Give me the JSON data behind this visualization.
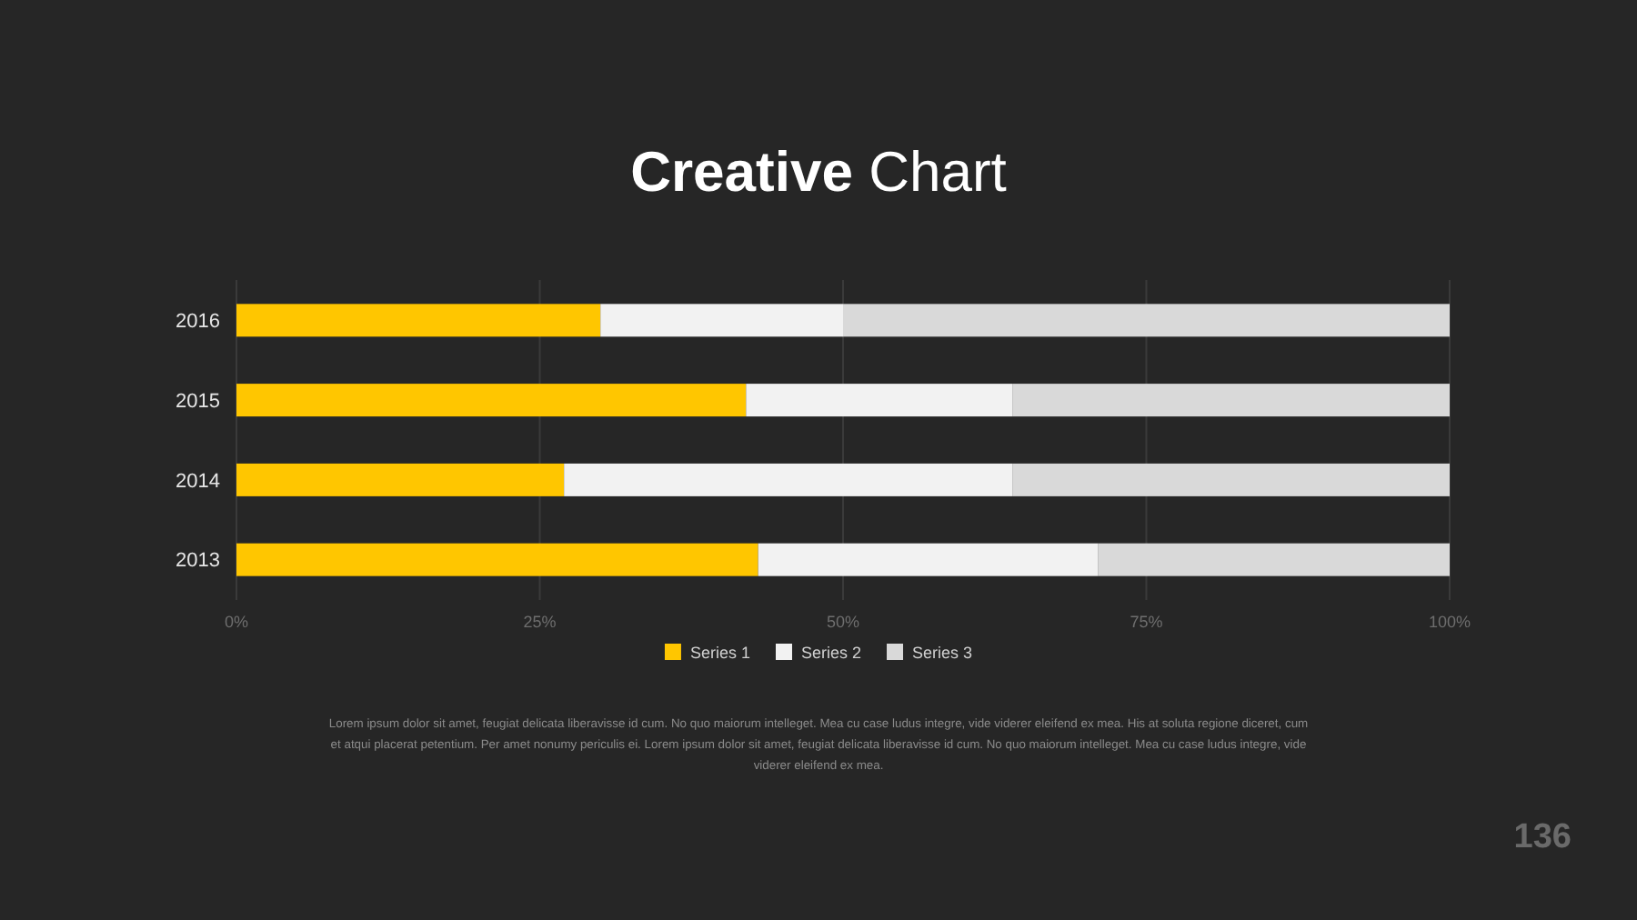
{
  "chart_data": {
    "type": "bar",
    "orientation": "horizontal",
    "stacked": true,
    "title": "Creative Chart",
    "categories": [
      "2016",
      "2015",
      "2014",
      "2013"
    ],
    "series": [
      {
        "name": "Series 1",
        "color": "#ffc600",
        "values": [
          30,
          42,
          27,
          43
        ]
      },
      {
        "name": "Series 2",
        "color": "#f2f2f2",
        "values": [
          20,
          22,
          37,
          28
        ]
      },
      {
        "name": "Series 3",
        "color": "#d9d9d9",
        "values": [
          50,
          36,
          36,
          29
        ]
      }
    ],
    "xlim": [
      0,
      100
    ],
    "xticks": [
      {
        "value": 0,
        "label": "0%"
      },
      {
        "value": 25,
        "label": "25%"
      },
      {
        "value": 50,
        "label": "50%"
      },
      {
        "value": 75,
        "label": "75%"
      },
      {
        "value": 100,
        "label": "100%"
      }
    ],
    "grid": "x",
    "legend": "bottom",
    "annotations": [
      "Lorem ipsum dolor sit amet, feugiat delicata liberavisse id cum. No quo maiorum intelleget. Mea cu case ludus integre, vide viderer eleifend ex mea. His at soluta regione diceret, cum et atqui placerat petentium. Per amet nonumy periculis ei. Lorem ipsum dolor sit amet, feugiat delicata liberavisse id cum. No quo maiorum intelleget. Mea cu case ludus integre, vide viderer eleifend ex mea.",
      "136"
    ]
  }
}
